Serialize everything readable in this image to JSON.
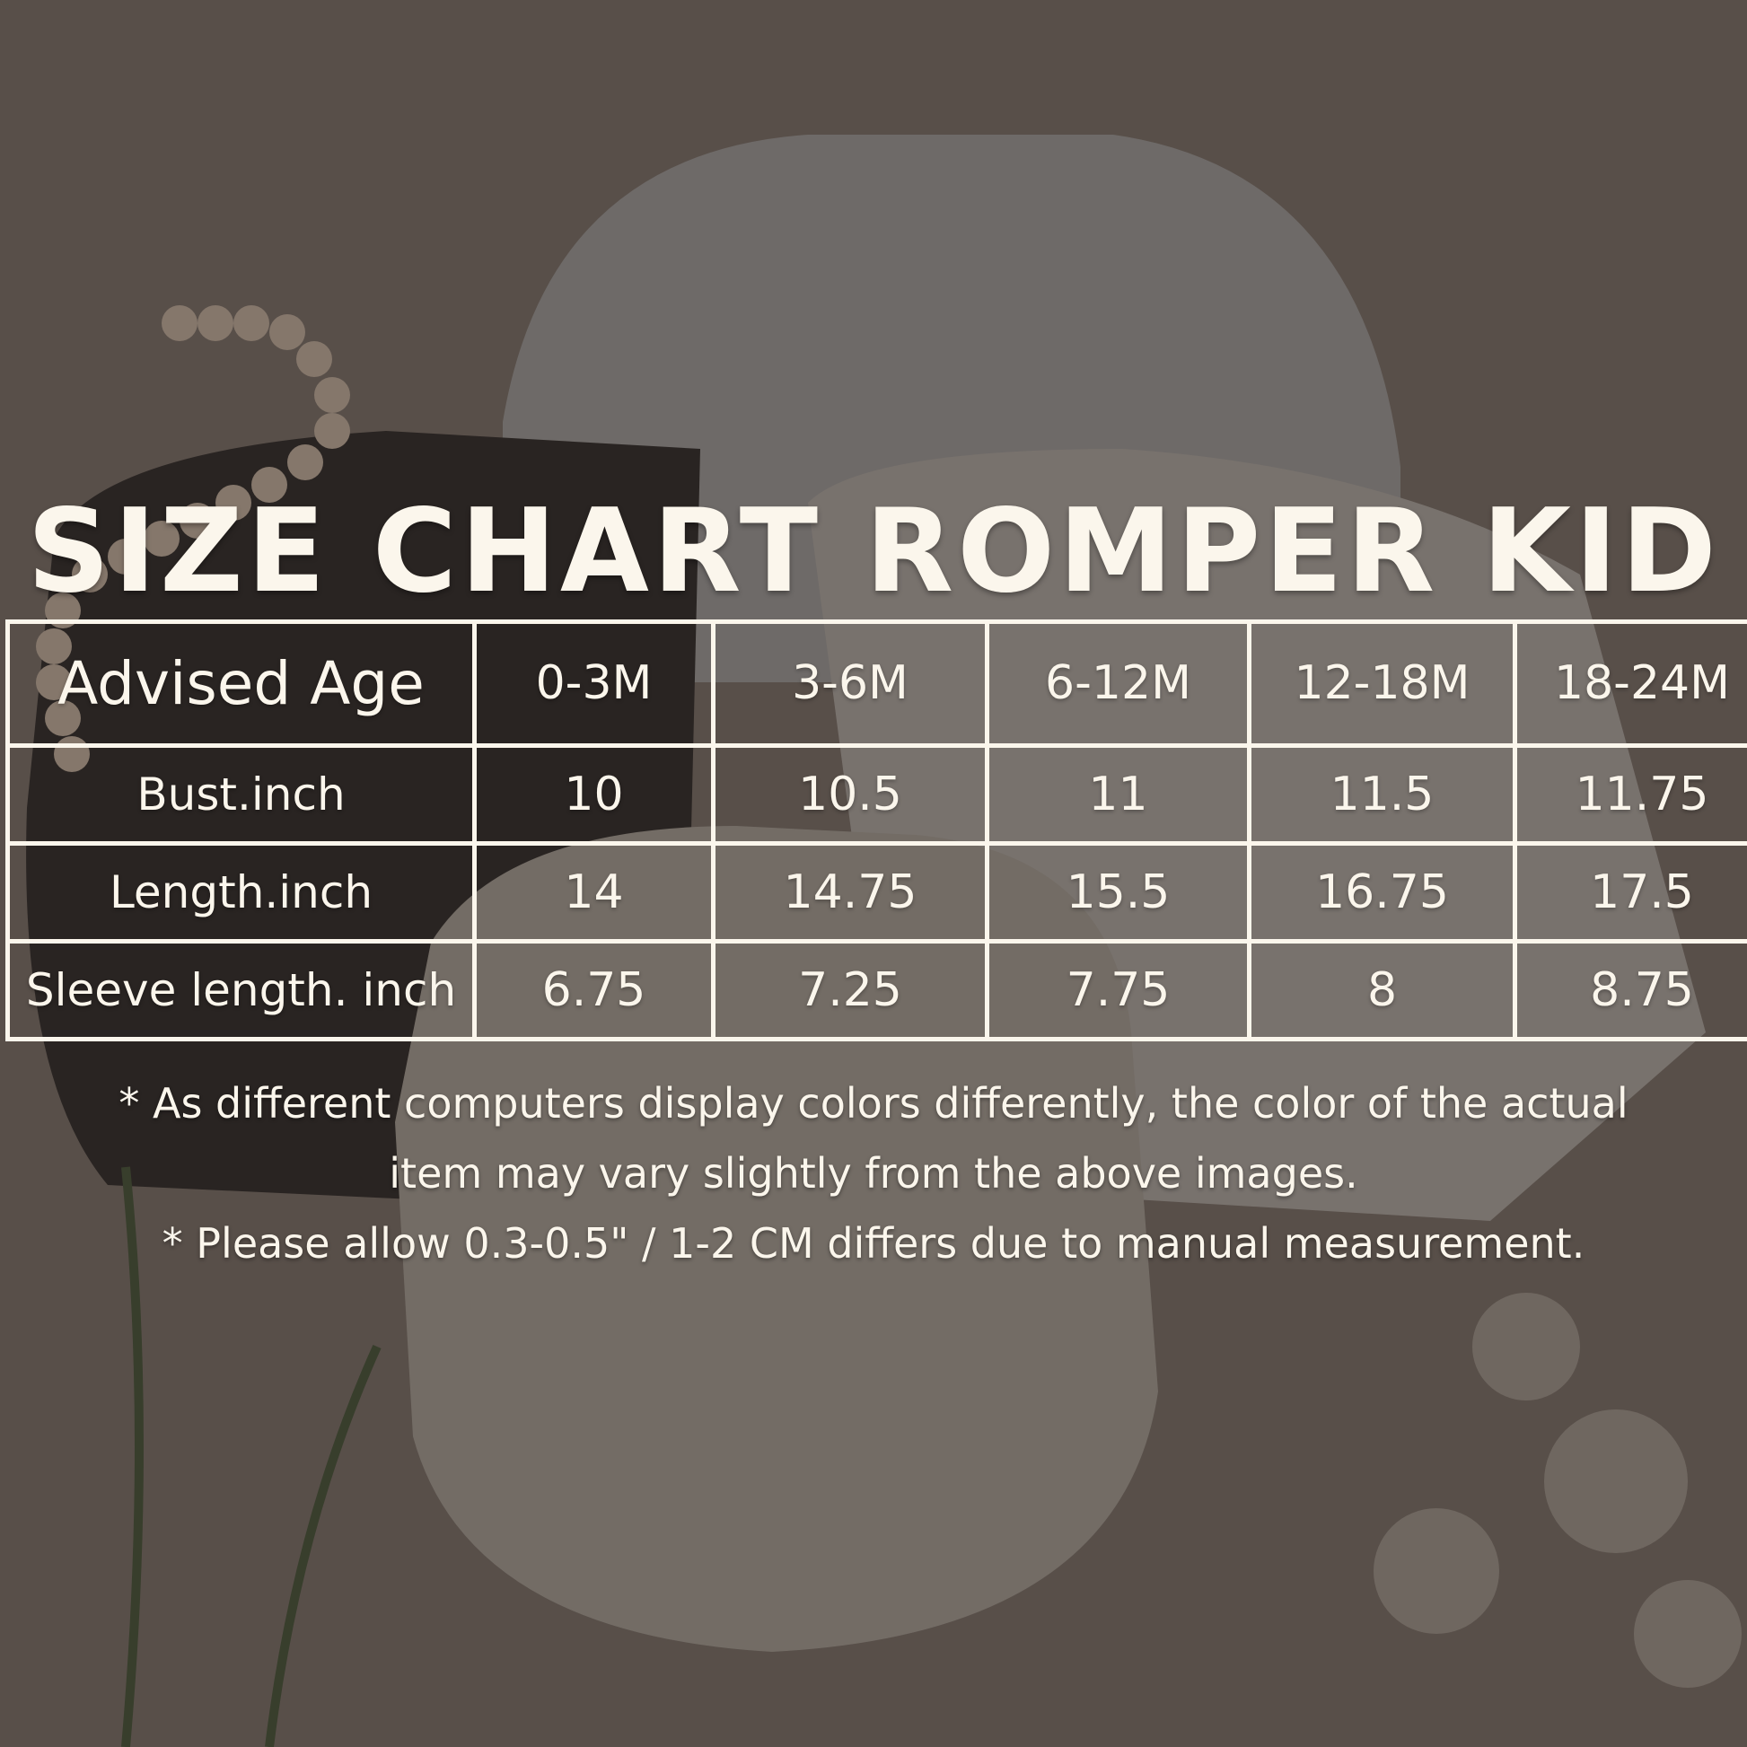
{
  "title": "SIZE CHART ROMPER KID",
  "table": {
    "header": [
      "Advised Age",
      "0-3M",
      "3-6M",
      "6-12M",
      "12-18M",
      "18-24M"
    ],
    "rows": [
      [
        "Bust.inch",
        "10",
        "10.5",
        "11",
        "11.5",
        "11.75"
      ],
      [
        "Length.inch",
        "14",
        "14.75",
        "15.5",
        "16.75",
        "17.5"
      ],
      [
        "Sleeve length. inch",
        "6.75",
        "7.25",
        "7.75",
        "8",
        "8.75"
      ]
    ]
  },
  "notes": [
    "* As different computers display colors differently, the color of the actual",
    "item may vary slightly from the above images.",
    "* Please allow 0.3-0.5\" / 1-2 CM differs due to manual measurement."
  ]
}
